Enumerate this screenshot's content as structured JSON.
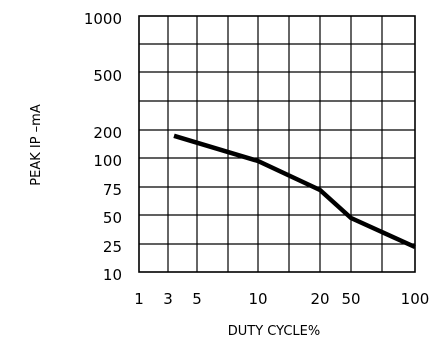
{
  "chart_data": {
    "type": "line",
    "xlabel": "DUTY CYCLE%",
    "ylabel": "PEAK IP  –mA",
    "grid": true,
    "x_tick_labels": [
      "1",
      "3",
      "5",
      "10",
      "20",
      "50",
      "100"
    ],
    "y_tick_labels": [
      "1000",
      "500",
      "200",
      "100",
      "75",
      "50",
      "25",
      "10"
    ],
    "series": [
      {
        "x": [
          "3",
          "10",
          "20",
          "50",
          "100"
        ],
        "y": [
          190,
          100,
          75,
          50,
          25
        ]
      }
    ],
    "line_color": "#000000"
  }
}
